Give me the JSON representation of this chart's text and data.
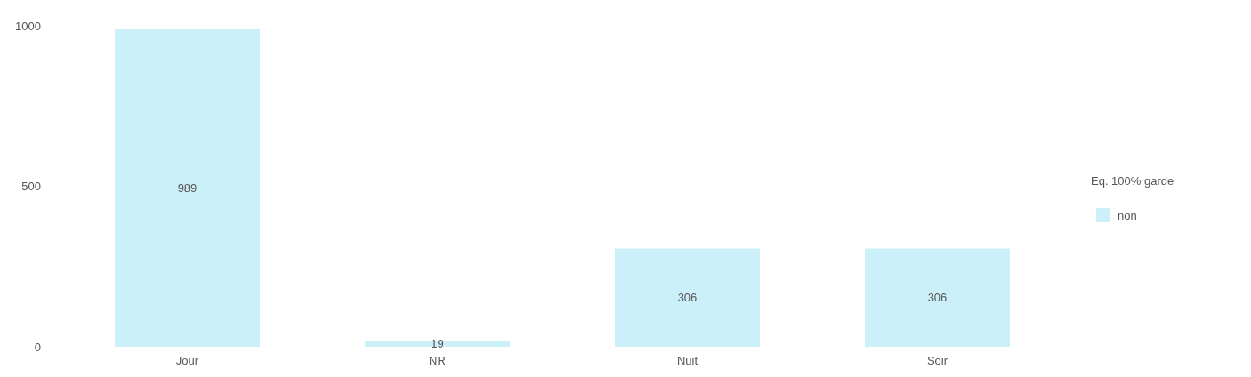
{
  "chart_data": {
    "type": "bar",
    "categories": [
      "Jour",
      "NR",
      "Nuit",
      "Soir"
    ],
    "series": [
      {
        "name": "non",
        "color": "#ccf0f9",
        "values": [
          989,
          19,
          306,
          306
        ]
      }
    ],
    "ylim": [
      0,
      1000
    ],
    "yticks": [
      0,
      500,
      1000
    ],
    "grid": false,
    "legend": "right",
    "legend_title": "Eq. 100% garde",
    "data_labels": true
  }
}
